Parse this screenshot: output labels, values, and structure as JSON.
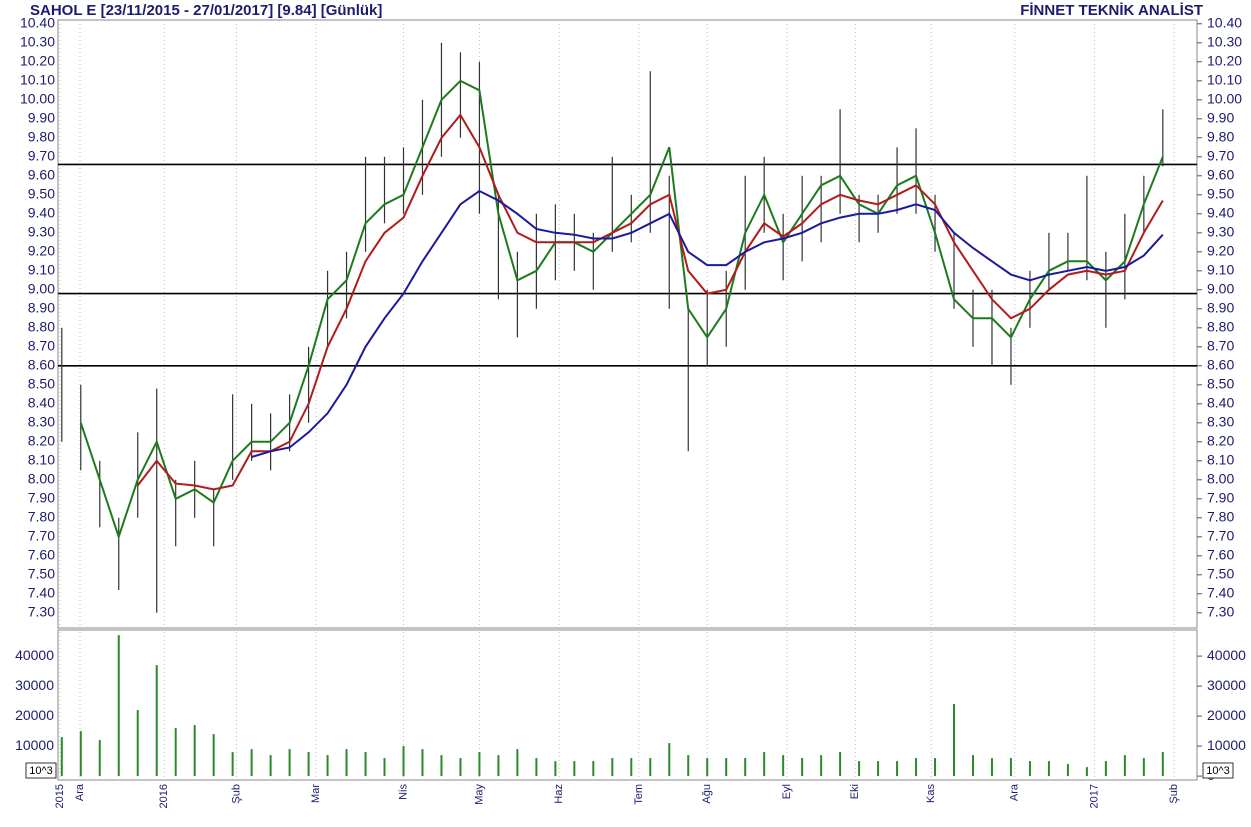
{
  "chart_data": {
    "type": "hl-bar",
    "title": "SAHOL E  [23/11/2015 - 27/01/2017]  [9.84]  [Günlük]",
    "brand": "FİNNET TEKNİK ANALİST",
    "x": [
      1,
      6,
      11,
      16,
      21,
      26,
      31,
      36,
      41,
      46,
      51,
      56,
      61,
      66,
      71,
      76,
      81,
      86,
      91,
      96,
      101,
      106,
      111,
      116,
      121,
      126,
      131,
      136,
      141,
      146,
      151,
      156,
      161,
      166,
      171,
      176,
      181,
      186,
      191,
      196,
      201,
      206,
      211,
      216,
      221,
      226,
      231,
      236,
      241,
      246,
      251,
      256,
      261,
      266,
      271,
      276,
      281,
      286,
      291
    ],
    "high": [
      8.8,
      8.5,
      8.1,
      7.8,
      8.25,
      8.48,
      8.0,
      8.1,
      7.95,
      8.45,
      8.4,
      8.35,
      8.45,
      8.7,
      9.1,
      9.2,
      9.7,
      9.7,
      9.75,
      10.0,
      10.3,
      10.25,
      10.2,
      9.5,
      9.2,
      9.4,
      9.45,
      9.4,
      9.3,
      9.7,
      9.5,
      10.15,
      9.6,
      8.9,
      9.0,
      9.1,
      9.6,
      9.7,
      9.4,
      9.6,
      9.6,
      9.95,
      9.5,
      9.5,
      9.75,
      9.85,
      9.5,
      9.3,
      9.0,
      9.0,
      8.8,
      9.1,
      9.3,
      9.3,
      9.6,
      9.2,
      9.4,
      9.6,
      9.95
    ],
    "low": [
      8.2,
      8.05,
      7.75,
      7.42,
      7.8,
      7.3,
      7.65,
      7.8,
      7.65,
      8.0,
      8.1,
      8.05,
      8.15,
      8.3,
      8.7,
      8.85,
      9.2,
      9.35,
      9.4,
      9.5,
      9.7,
      9.8,
      9.4,
      8.95,
      8.75,
      8.9,
      9.05,
      9.1,
      9.0,
      9.2,
      9.25,
      9.3,
      8.9,
      8.15,
      8.6,
      8.7,
      9.0,
      9.3,
      9.05,
      9.15,
      9.25,
      9.4,
      9.25,
      9.3,
      9.4,
      9.4,
      9.2,
      8.9,
      8.7,
      8.6,
      8.5,
      8.8,
      9.0,
      9.1,
      9.05,
      8.8,
      8.95,
      9.3,
      9.65
    ],
    "bar_color": "#333333",
    "series": [
      {
        "color": "#1e7a1e",
        "values": [
          null,
          8.3,
          8.0,
          7.7,
          8.0,
          8.2,
          7.9,
          7.95,
          7.88,
          8.1,
          8.2,
          8.2,
          8.3,
          8.6,
          8.95,
          9.05,
          9.35,
          9.45,
          9.5,
          9.75,
          10.0,
          10.1,
          10.05,
          9.4,
          9.05,
          9.1,
          9.25,
          9.25,
          9.2,
          9.3,
          9.4,
          9.5,
          9.75,
          8.9,
          8.75,
          8.9,
          9.3,
          9.5,
          9.25,
          9.4,
          9.55,
          9.6,
          9.45,
          9.4,
          9.55,
          9.6,
          9.3,
          8.95,
          8.85,
          8.85,
          8.75,
          8.95,
          9.1,
          9.15,
          9.15,
          9.05,
          9.15,
          9.45,
          9.7
        ]
      },
      {
        "color": "#b01c1c",
        "values": [
          null,
          null,
          null,
          null,
          7.97,
          8.1,
          7.98,
          7.97,
          7.95,
          7.97,
          8.15,
          8.15,
          8.2,
          8.4,
          8.7,
          8.9,
          9.15,
          9.3,
          9.38,
          9.6,
          9.8,
          9.92,
          9.75,
          9.5,
          9.3,
          9.25,
          9.25,
          9.25,
          9.25,
          9.3,
          9.35,
          9.45,
          9.5,
          9.1,
          8.98,
          9.0,
          9.2,
          9.35,
          9.28,
          9.35,
          9.45,
          9.5,
          9.47,
          9.45,
          9.5,
          9.55,
          9.45,
          9.25,
          9.1,
          8.95,
          8.85,
          8.9,
          9.0,
          9.08,
          9.1,
          9.08,
          9.1,
          9.3,
          9.47
        ]
      },
      {
        "color": "#1a1a9c",
        "values": [
          null,
          null,
          null,
          null,
          null,
          null,
          null,
          null,
          null,
          null,
          8.12,
          8.15,
          8.17,
          8.25,
          8.35,
          8.5,
          8.7,
          8.85,
          8.98,
          9.15,
          9.3,
          9.45,
          9.52,
          9.47,
          9.4,
          9.32,
          9.3,
          9.29,
          9.27,
          9.27,
          9.3,
          9.35,
          9.4,
          9.2,
          9.13,
          9.13,
          9.2,
          9.25,
          9.27,
          9.3,
          9.35,
          9.38,
          9.4,
          9.4,
          9.42,
          9.45,
          9.42,
          9.3,
          9.22,
          9.15,
          9.08,
          9.05,
          9.08,
          9.1,
          9.12,
          9.1,
          9.12,
          9.18,
          9.29
        ]
      }
    ],
    "hlines": [
      9.66,
      8.98,
      8.6
    ],
    "xlim": [
      0,
      300
    ],
    "xticks": [
      {
        "value": 0.5,
        "label": "2015"
      },
      {
        "value": 5.8,
        "label": "Ara"
      },
      {
        "value": 28,
        "label": "2016"
      },
      {
        "value": 47,
        "label": "Şub"
      },
      {
        "value": 68,
        "label": "Mar"
      },
      {
        "value": 91,
        "label": "Nis"
      },
      {
        "value": 111,
        "label": "May"
      },
      {
        "value": 132,
        "label": "Haz"
      },
      {
        "value": 153,
        "label": "Tem"
      },
      {
        "value": 171,
        "label": "Ağu"
      },
      {
        "value": 192,
        "label": "Eyl"
      },
      {
        "value": 210,
        "label": "Eki"
      },
      {
        "value": 230,
        "label": "Kas"
      },
      {
        "value": 252,
        "label": "Ara"
      },
      {
        "value": 273,
        "label": "2017"
      },
      {
        "value": 294,
        "label": "Şub"
      }
    ],
    "ylim": [
      7.22,
      10.42
    ],
    "yticks": [
      {
        "value": 7.3,
        "label": "7.30"
      },
      {
        "value": 7.4,
        "label": "7.40"
      },
      {
        "value": 7.5,
        "label": "7.50"
      },
      {
        "value": 7.6,
        "label": "7.60"
      },
      {
        "value": 7.7,
        "label": "7.70"
      },
      {
        "value": 7.8,
        "label": "7.80"
      },
      {
        "value": 7.9,
        "label": "7.90"
      },
      {
        "value": 8.0,
        "label": "8.00"
      },
      {
        "value": 8.1,
        "label": "8.10"
      },
      {
        "value": 8.2,
        "label": "8.20"
      },
      {
        "value": 8.3,
        "label": "8.30"
      },
      {
        "value": 8.4,
        "label": "8.40"
      },
      {
        "value": 8.5,
        "label": "8.50"
      },
      {
        "value": 8.6,
        "label": "8.60"
      },
      {
        "value": 8.7,
        "label": "8.70"
      },
      {
        "value": 8.8,
        "label": "8.80"
      },
      {
        "value": 8.9,
        "label": "8.90"
      },
      {
        "value": 9.0,
        "label": "9.00"
      },
      {
        "value": 9.1,
        "label": "9.10"
      },
      {
        "value": 9.2,
        "label": "9.20"
      },
      {
        "value": 9.3,
        "label": "9.30"
      },
      {
        "value": 9.4,
        "label": "9.40"
      },
      {
        "value": 9.5,
        "label": "9.50"
      },
      {
        "value": 9.6,
        "label": "9.60"
      },
      {
        "value": 9.7,
        "label": "9.70"
      },
      {
        "value": 9.8,
        "label": "9.80"
      },
      {
        "value": 9.9,
        "label": "9.90"
      },
      {
        "value": 10.0,
        "label": "10.00"
      },
      {
        "value": 10.1,
        "label": "10.10"
      },
      {
        "value": 10.2,
        "label": "10.20"
      },
      {
        "value": 10.3,
        "label": "10.30"
      },
      {
        "value": 10.4,
        "label": "10.40"
      }
    ],
    "volume": {
      "color": "#2a8a2a",
      "unit": "10^3",
      "values": [
        13000,
        15000,
        12000,
        47000,
        22000,
        37000,
        16000,
        17000,
        14000,
        8000,
        9000,
        7000,
        9000,
        8000,
        7000,
        9000,
        8000,
        6000,
        10000,
        9000,
        7000,
        6000,
        8000,
        7000,
        9000,
        6000,
        5000,
        5000,
        5000,
        6000,
        6000,
        6000,
        11000,
        7000,
        6000,
        6000,
        6000,
        8000,
        7000,
        6000,
        7000,
        8000,
        5000,
        5000,
        5000,
        6000,
        6000,
        24000,
        7000,
        6000,
        6000,
        5000,
        5000,
        4000,
        3000,
        5000,
        7000,
        6000,
        8000
      ],
      "ylim": [
        -1300,
        48700
      ],
      "yticks": [
        0,
        10000,
        20000,
        30000,
        40000
      ]
    }
  }
}
